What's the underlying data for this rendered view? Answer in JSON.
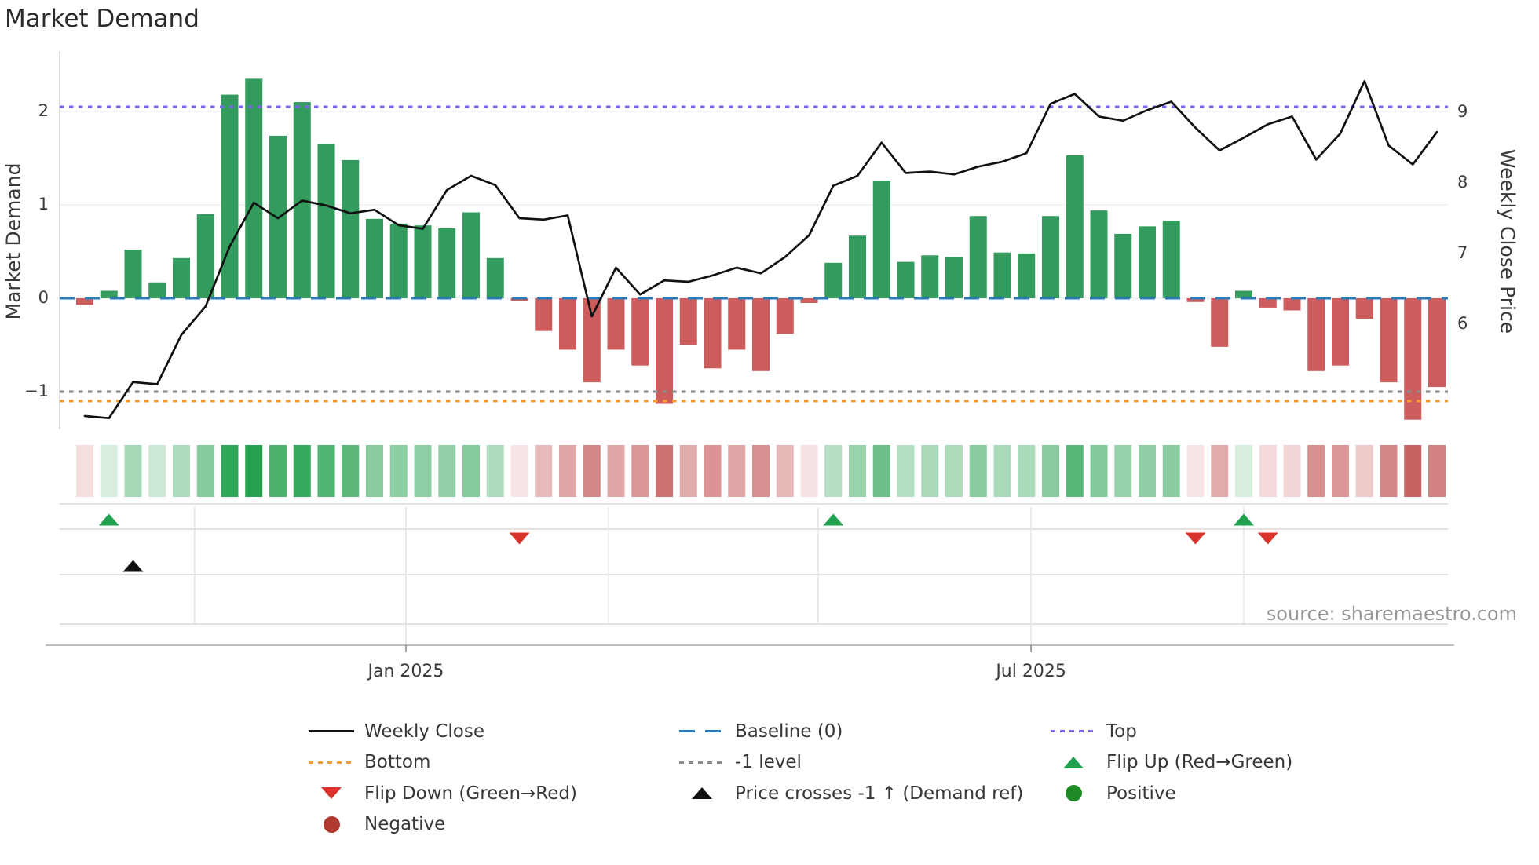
{
  "title": "Market Demand",
  "source_credit": "source: sharemaestro.com",
  "axes": {
    "left_label": "Market Demand",
    "right_label": "Weekly Close Price",
    "left_ticks": [
      {
        "value": 2,
        "label": "2"
      },
      {
        "value": 1,
        "label": "1"
      },
      {
        "value": 0,
        "label": "0"
      },
      {
        "value": -1,
        "label": "−1"
      }
    ],
    "right_ticks": [
      {
        "value": 9,
        "label": "9"
      },
      {
        "value": 8,
        "label": "8"
      },
      {
        "value": 7,
        "label": "7"
      },
      {
        "value": 6,
        "label": "6"
      }
    ],
    "x_ticks": [
      {
        "label": "Jan 2025",
        "week": 13.3
      },
      {
        "label": "Jul 2025",
        "week": 39.19
      }
    ]
  },
  "chart_data": {
    "type": "combo-bar-line-heatmap",
    "title": "Market Demand",
    "x_unit": "weekly (Sep 2024 – Oct 2025)",
    "weeks": 57,
    "demand_bars": [
      -0.07,
      0.08,
      0.52,
      0.17,
      0.43,
      0.9,
      2.18,
      2.35,
      1.74,
      2.1,
      1.65,
      1.48,
      0.85,
      0.8,
      0.78,
      0.75,
      0.92,
      0.43,
      -0.03,
      -0.35,
      -0.55,
      -0.9,
      -0.55,
      -0.72,
      -1.13,
      -0.5,
      -0.75,
      -0.55,
      -0.78,
      -0.38,
      -0.05,
      0.38,
      0.67,
      1.26,
      0.39,
      0.46,
      0.44,
      0.88,
      0.49,
      0.48,
      0.88,
      1.53,
      0.94,
      0.69,
      0.77,
      0.83,
      -0.04,
      -0.52,
      0.08,
      -0.1,
      -0.13,
      -0.78,
      -0.72,
      -0.22,
      -0.9,
      -1.3,
      -0.95
    ],
    "weekly_close": [
      4.7,
      4.67,
      5.18,
      5.15,
      5.85,
      6.25,
      7.1,
      7.72,
      7.5,
      7.75,
      7.68,
      7.57,
      7.62,
      7.4,
      7.35,
      7.9,
      8.1,
      7.97,
      7.5,
      7.48,
      7.54,
      6.11,
      6.8,
      6.42,
      6.62,
      6.6,
      6.69,
      6.8,
      6.72,
      6.95,
      7.26,
      7.96,
      8.1,
      8.57,
      8.14,
      8.16,
      8.12,
      8.23,
      8.3,
      8.42,
      9.12,
      9.26,
      8.94,
      8.88,
      9.03,
      9.15,
      8.78,
      8.46,
      8.64,
      8.83,
      8.94,
      8.33,
      8.7,
      9.44,
      8.53,
      8.26,
      8.72
    ],
    "levels": {
      "baseline": 0,
      "top": 2.05,
      "bottom": -1.1,
      "minus_one": -1
    },
    "flip_up_weeks": [
      1,
      31,
      48
    ],
    "flip_down_weeks": [
      18,
      46,
      49
    ],
    "price_cross_weeks": [
      2
    ],
    "vgrid_weeks": [
      4.55,
      13.3,
      21.69,
      30.37,
      39.19,
      48.0
    ],
    "ylim_demand": [
      -1.4,
      2.65
    ],
    "ylim_price": [
      4.5,
      9.85
    ],
    "legend_position": "bottom",
    "grid": true
  },
  "legend": {
    "columns": [
      [
        {
          "swatch": "line",
          "color": "#111111",
          "label": "Weekly Close"
        },
        {
          "swatch": "dotted",
          "color": "#f49b33",
          "label": "Bottom"
        },
        {
          "swatch": "tri-down",
          "color": "#d8342c",
          "label": "Flip Down (Green→Red)"
        },
        {
          "swatch": "circle",
          "color": "#b03a30",
          "label": "Negative"
        }
      ],
      [
        {
          "swatch": "dashed",
          "color": "#2b7bba",
          "label": "Baseline (0)"
        },
        {
          "swatch": "dotted",
          "color": "#8a8a8a",
          "label": "-1 level"
        },
        {
          "swatch": "tri-up",
          "color": "#111111",
          "label": "Price crosses -1 ↑ (Demand ref)"
        }
      ],
      [
        {
          "swatch": "dotted",
          "color": "#7b68ee",
          "label": "Top"
        },
        {
          "swatch": "tri-up",
          "color": "#1fa14e",
          "label": "Flip Up (Red→Green)"
        },
        {
          "swatch": "circle",
          "color": "#1e8b27",
          "label": "Positive"
        }
      ]
    ]
  },
  "colors": {
    "bar_positive": "#339b5d",
    "bar_negative": "#cd5c5c",
    "price_line": "#111111",
    "baseline": "#2b7bba",
    "top_level": "#7b68ee",
    "bottom_level": "#f49b33",
    "minus_one_level": "#8a8a8a",
    "flip_up": "#1fa14e",
    "flip_down": "#d8342c",
    "price_cross": "#111111",
    "grid_main": "#ececf3",
    "grid_panel": "#d8d8d8",
    "spine": "#c9c9c9",
    "axis_line": "#a8a8a8"
  }
}
